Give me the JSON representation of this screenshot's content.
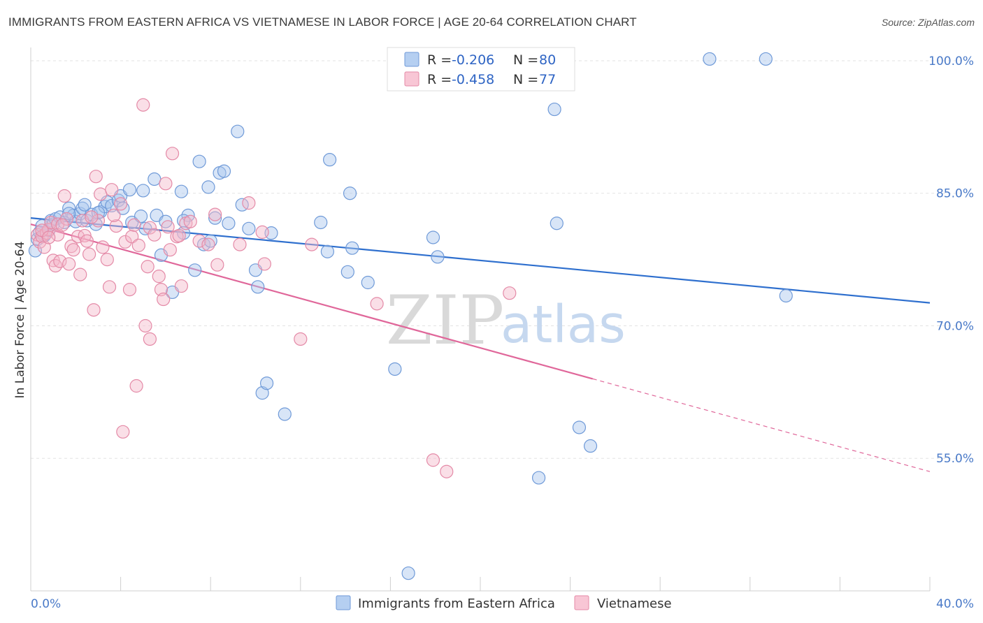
{
  "title": "IMMIGRANTS FROM EASTERN AFRICA VS VIETNAMESE IN LABOR FORCE | AGE 20-64 CORRELATION CHART",
  "source": "Source: ZipAtlas.com",
  "watermark": {
    "zip": "ZIP",
    "atlas": "atlas"
  },
  "colors": {
    "blue_fill": "#a9c6ee",
    "blue_stroke": "#6f9ad8",
    "blue_line": "#2e6fce",
    "pink_fill": "#f5b7c9",
    "pink_stroke": "#e48aa7",
    "pink_line": "#e0679a",
    "tick_label": "#4a7ac8",
    "grid": "#e3e3e3"
  },
  "legend_top": {
    "rows": [
      {
        "series": "blue",
        "r_label": "R =",
        "r_value": "-0.206",
        "n_label": "N =",
        "n_value": "80"
      },
      {
        "series": "pink",
        "r_label": "R =",
        "r_value": "-0.458",
        "n_label": "N =",
        "n_value": "77"
      }
    ]
  },
  "chart_data": {
    "type": "scatter",
    "title": "IMMIGRANTS FROM EASTERN AFRICA VS VIETNAMESE IN LABOR FORCE | AGE 20-64 CORRELATION CHART",
    "xlabel": "",
    "ylabel": "In Labor Force | Age 20-64",
    "xlim": [
      0,
      40
    ],
    "ylim": [
      40,
      101.5
    ],
    "x_tick_labels": [
      {
        "value": 0,
        "label": "0.0%"
      },
      {
        "value": 40,
        "label": "40.0%"
      }
    ],
    "y_tick_labels": [
      {
        "value": 100,
        "label": "100.0%"
      },
      {
        "value": 85,
        "label": "85.0%"
      },
      {
        "value": 70,
        "label": "70.0%"
      },
      {
        "value": 55,
        "label": "55.0%"
      }
    ],
    "grid": true,
    "legend_position": "top-center",
    "series": [
      {
        "name": "Immigrants from Eastern Africa",
        "color": "blue",
        "R": -0.206,
        "N": 80,
        "trend": {
          "x0": 0,
          "y0": 82.2,
          "x1": 40,
          "y1": 72.6
        },
        "points": [
          [
            0.2,
            78.5
          ],
          [
            0.3,
            79.8
          ],
          [
            0.4,
            80.6
          ],
          [
            0.5,
            81.3
          ],
          [
            0.6,
            80.2
          ],
          [
            0.8,
            80.8
          ],
          [
            0.9,
            81.9
          ],
          [
            1.0,
            81.5
          ],
          [
            1.1,
            82.1
          ],
          [
            1.3,
            82.3
          ],
          [
            1.5,
            81.7
          ],
          [
            1.7,
            83.3
          ],
          [
            1.9,
            82.5
          ],
          [
            2.0,
            81.8
          ],
          [
            2.2,
            82.7
          ],
          [
            2.3,
            83.3
          ],
          [
            2.5,
            81.9
          ],
          [
            2.7,
            82.6
          ],
          [
            2.9,
            81.5
          ],
          [
            3.1,
            82.9
          ],
          [
            3.3,
            83.5
          ],
          [
            3.4,
            84.0
          ],
          [
            3.6,
            83.6
          ],
          [
            3.9,
            84.2
          ],
          [
            4.0,
            84.7
          ],
          [
            4.1,
            83.3
          ],
          [
            4.4,
            85.4
          ],
          [
            4.5,
            81.7
          ],
          [
            4.9,
            82.4
          ],
          [
            5.1,
            81.0
          ],
          [
            5.5,
            86.6
          ],
          [
            5.6,
            82.5
          ],
          [
            5.8,
            78.0
          ],
          [
            6.0,
            81.8
          ],
          [
            6.3,
            73.8
          ],
          [
            6.7,
            85.2
          ],
          [
            6.8,
            80.5
          ],
          [
            7.0,
            82.5
          ],
          [
            7.3,
            76.3
          ],
          [
            7.5,
            88.6
          ],
          [
            7.7,
            79.2
          ],
          [
            7.9,
            85.7
          ],
          [
            8.0,
            79.6
          ],
          [
            8.2,
            82.2
          ],
          [
            8.4,
            87.3
          ],
          [
            8.6,
            87.5
          ],
          [
            9.2,
            92.0
          ],
          [
            9.4,
            83.7
          ],
          [
            9.7,
            81.0
          ],
          [
            10.0,
            76.3
          ],
          [
            10.1,
            74.4
          ],
          [
            10.3,
            62.4
          ],
          [
            10.5,
            63.5
          ],
          [
            10.7,
            80.5
          ],
          [
            11.3,
            60.0
          ],
          [
            12.9,
            81.7
          ],
          [
            13.2,
            78.4
          ],
          [
            13.3,
            88.8
          ],
          [
            14.1,
            76.1
          ],
          [
            14.2,
            85.0
          ],
          [
            14.3,
            78.8
          ],
          [
            15.0,
            74.9
          ],
          [
            16.2,
            65.1
          ],
          [
            16.8,
            42.0
          ],
          [
            17.9,
            80.0
          ],
          [
            18.1,
            77.8
          ],
          [
            22.6,
            52.8
          ],
          [
            23.3,
            94.5
          ],
          [
            23.4,
            81.6
          ],
          [
            24.4,
            58.5
          ],
          [
            24.9,
            56.4
          ],
          [
            30.2,
            100.2
          ],
          [
            32.7,
            100.2
          ],
          [
            33.6,
            73.4
          ],
          [
            1.7,
            82.7
          ],
          [
            3.0,
            82.8
          ],
          [
            6.8,
            81.9
          ],
          [
            2.4,
            83.7
          ],
          [
            5.0,
            85.3
          ],
          [
            8.8,
            81.6
          ]
        ]
      },
      {
        "name": "Vietnamese",
        "color": "pink",
        "R": -0.458,
        "N": 77,
        "trend": {
          "x0": 0,
          "y0": 81.5,
          "x1": 25.0,
          "y1": 64.0,
          "dash_to_x": 40,
          "dash_to_y": 53.5
        },
        "points": [
          [
            0.3,
            80.3
          ],
          [
            0.4,
            79.5
          ],
          [
            0.5,
            80.1
          ],
          [
            0.6,
            78.9
          ],
          [
            0.7,
            80.5
          ],
          [
            0.8,
            80.9
          ],
          [
            0.9,
            81.7
          ],
          [
            1.0,
            77.4
          ],
          [
            1.1,
            76.8
          ],
          [
            1.2,
            81.5
          ],
          [
            1.3,
            77.3
          ],
          [
            1.5,
            84.7
          ],
          [
            1.6,
            82.1
          ],
          [
            1.7,
            77.0
          ],
          [
            1.8,
            79.0
          ],
          [
            1.9,
            78.6
          ],
          [
            2.1,
            80.1
          ],
          [
            2.2,
            75.8
          ],
          [
            2.3,
            81.9
          ],
          [
            2.4,
            80.2
          ],
          [
            2.5,
            79.6
          ],
          [
            2.6,
            78.1
          ],
          [
            2.8,
            71.8
          ],
          [
            2.9,
            86.9
          ],
          [
            3.0,
            81.9
          ],
          [
            3.1,
            84.9
          ],
          [
            3.2,
            78.9
          ],
          [
            3.4,
            77.5
          ],
          [
            3.5,
            74.4
          ],
          [
            3.6,
            85.4
          ],
          [
            3.8,
            81.3
          ],
          [
            4.0,
            83.8
          ],
          [
            4.2,
            79.5
          ],
          [
            4.4,
            74.1
          ],
          [
            4.5,
            80.1
          ],
          [
            4.7,
            63.2
          ],
          [
            4.8,
            79.1
          ],
          [
            5.1,
            70.0
          ],
          [
            5.2,
            76.7
          ],
          [
            5.3,
            68.5
          ],
          [
            5.3,
            81.1
          ],
          [
            5.5,
            80.3
          ],
          [
            5.7,
            75.6
          ],
          [
            5.8,
            74.1
          ],
          [
            5.9,
            73.0
          ],
          [
            6.0,
            86.1
          ],
          [
            6.2,
            78.6
          ],
          [
            6.3,
            89.5
          ],
          [
            6.5,
            80.1
          ],
          [
            6.6,
            80.2
          ],
          [
            6.7,
            74.5
          ],
          [
            6.9,
            81.6
          ],
          [
            7.5,
            79.6
          ],
          [
            7.9,
            79.2
          ],
          [
            8.2,
            82.6
          ],
          [
            8.3,
            76.9
          ],
          [
            9.3,
            79.2
          ],
          [
            9.7,
            83.9
          ],
          [
            10.3,
            80.6
          ],
          [
            10.4,
            77.0
          ],
          [
            12.0,
            68.5
          ],
          [
            12.5,
            79.2
          ],
          [
            15.4,
            72.5
          ],
          [
            17.9,
            54.8
          ],
          [
            18.5,
            53.5
          ],
          [
            21.3,
            73.7
          ],
          [
            5.0,
            95.0
          ],
          [
            4.1,
            58.0
          ],
          [
            0.5,
            80.8
          ],
          [
            1.2,
            80.3
          ],
          [
            2.7,
            82.3
          ],
          [
            3.7,
            82.5
          ],
          [
            6.1,
            81.2
          ],
          [
            7.1,
            81.8
          ],
          [
            0.8,
            80.0
          ],
          [
            1.4,
            81.4
          ],
          [
            4.6,
            81.4
          ]
        ]
      }
    ]
  },
  "bottom_legend": {
    "items": [
      {
        "series": "blue",
        "label": "Immigrants from Eastern Africa"
      },
      {
        "series": "pink",
        "label": "Vietnamese"
      }
    ]
  }
}
